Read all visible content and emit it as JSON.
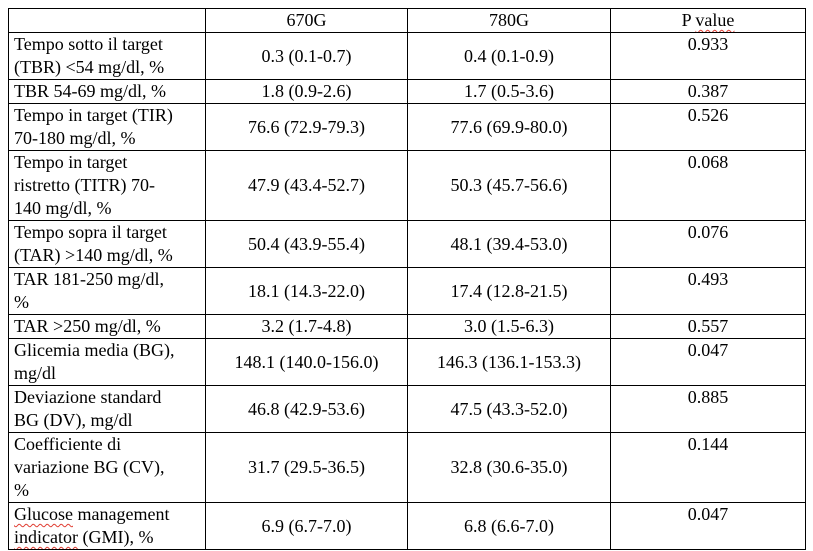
{
  "colors": {
    "background": "#ffffff",
    "text": "#000000",
    "table_border": "#000000",
    "spellcheck_underline": "#e03c31"
  },
  "spellcheck_words": [
    "value",
    "Glucose",
    "indicator"
  ],
  "table": {
    "headers": [
      "",
      "670G",
      "780G",
      "P value"
    ],
    "rows": [
      {
        "label": "Tempo sotto il target\n(TBR) <54 mg/dl, %",
        "v670": "0.3 (0.1-0.7)",
        "v780": "0.4 (0.1-0.9)",
        "p": "0.933"
      },
      {
        "label": "TBR 54-69 mg/dl, %",
        "v670": "1.8 (0.9-2.6)",
        "v780": "1.7 (0.5-3.6)",
        "p": "0.387"
      },
      {
        "label": "Tempo in target (TIR)\n70-180 mg/dl, %",
        "v670": "76.6 (72.9-79.3)",
        "v780": "77.6 (69.9-80.0)",
        "p": "0.526"
      },
      {
        "label": "Tempo in target\nristretto (TITR) 70-\n140 mg/dl, %",
        "v670": "47.9 (43.4-52.7)",
        "v780": "50.3 (45.7-56.6)",
        "p": "0.068"
      },
      {
        "label": "Tempo sopra il target\n(TAR) >140 mg/dl, %",
        "v670": "50.4 (43.9-55.4)",
        "v780": "48.1 (39.4-53.0)",
        "p": "0.076"
      },
      {
        "label": "TAR 181-250 mg/dl,\n%",
        "v670": "18.1 (14.3-22.0)",
        "v780": "17.4 (12.8-21.5)",
        "p": "0.493"
      },
      {
        "label": "TAR >250 mg/dl, %",
        "v670": "3.2 (1.7-4.8)",
        "v780": "3.0 (1.5-6.3)",
        "p": "0.557"
      },
      {
        "label": "Glicemia media (BG),\nmg/dl",
        "v670": "148.1 (140.0-156.0)",
        "v780": "146.3 (136.1-153.3)",
        "p": "0.047"
      },
      {
        "label": "Deviazione standard\nBG (DV), mg/dl",
        "v670": "46.8 (42.9-53.6)",
        "v780": "47.5 (43.3-52.0)",
        "p": "0.885"
      },
      {
        "label": "Coefficiente di\nvariazione BG (CV),\n%",
        "v670": "31.7 (29.5-36.5)",
        "v780": "32.8 (30.6-35.0)",
        "p": "0.144"
      },
      {
        "label": "Glucose management\nindicator (GMI), %",
        "v670": "6.9 (6.7-7.0)",
        "v780": "6.8 (6.6-7.0)",
        "p": "0.047"
      }
    ]
  }
}
